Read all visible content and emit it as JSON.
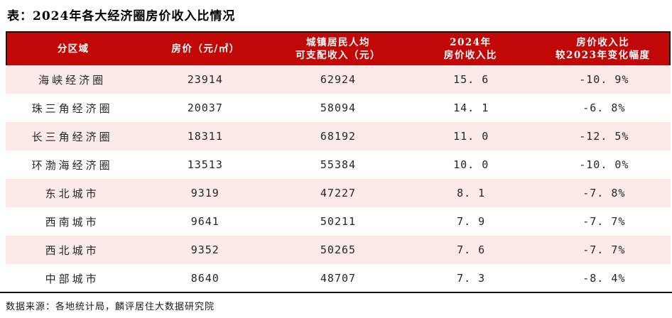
{
  "title": "表：2024年各大经济圈房价收入比情况",
  "colors": {
    "header_bg": "#C20707",
    "header_text": "#ffffff",
    "row_alt_bg": "#FCEAE8",
    "row_bg": "#ffffff",
    "text": "#262626",
    "rule": "#111111"
  },
  "table": {
    "header": {
      "columns": [
        {
          "line1": "分区域",
          "line2": ""
        },
        {
          "line1": "房价（元/㎡）",
          "line2": ""
        },
        {
          "line1": "城镇居民人均",
          "line2": "可支配收入（元）"
        },
        {
          "line1": "2024年",
          "line2": "房价收入比"
        },
        {
          "line1": "房价收入比",
          "line2": "较2023年变化幅度"
        }
      ]
    },
    "rows": [
      {
        "region": "海峡经济圈",
        "price": "23914",
        "income": "62924",
        "ratio": "15. 6",
        "change": "-10. 9%"
      },
      {
        "region": "珠三角经济圈",
        "price": "20037",
        "income": "58094",
        "ratio": "14. 1",
        "change": "-6. 8%"
      },
      {
        "region": "长三角经济圈",
        "price": "18311",
        "income": "68192",
        "ratio": "11. 0",
        "change": "-12. 5%"
      },
      {
        "region": "环渤海经济圈",
        "price": "13513",
        "income": "55384",
        "ratio": "10. 0",
        "change": "-10. 0%"
      },
      {
        "region": "东北城市",
        "price": "9319",
        "income": "47227",
        "ratio": "8. 1",
        "change": "-7. 8%"
      },
      {
        "region": "西南城市",
        "price": "9641",
        "income": "50211",
        "ratio": "7. 9",
        "change": "-7. 7%"
      },
      {
        "region": "西北城市",
        "price": "9352",
        "income": "50265",
        "ratio": "7. 6",
        "change": "-7. 7%"
      },
      {
        "region": "中部城市",
        "price": "8640",
        "income": "48707",
        "ratio": "7. 3",
        "change": "-8. 4%"
      }
    ]
  },
  "footer": {
    "source": "数据来源：各地统计局，麟评居住大数据研究院"
  },
  "chart_data": {
    "type": "table",
    "title": "表：2024年各大经济圈房价收入比情况",
    "columns": [
      "分区域",
      "房价（元/㎡）",
      "城镇居民人均可支配收入（元）",
      "2024年房价收入比",
      "房价收入比较2023年变化幅度"
    ],
    "rows": [
      [
        "海峡经济圈",
        23914,
        62924,
        15.6,
        "-10.9%"
      ],
      [
        "珠三角经济圈",
        20037,
        58094,
        14.1,
        "-6.8%"
      ],
      [
        "长三角经济圈",
        18311,
        68192,
        11.0,
        "-12.5%"
      ],
      [
        "环渤海经济圈",
        13513,
        55384,
        10.0,
        "-10.0%"
      ],
      [
        "东北城市",
        9319,
        47227,
        8.1,
        "-7.8%"
      ],
      [
        "西南城市",
        9641,
        50211,
        7.9,
        "-7.7%"
      ],
      [
        "西北城市",
        9352,
        50265,
        7.6,
        "-7.7%"
      ],
      [
        "中部城市",
        8640,
        48707,
        7.3,
        "-8.4%"
      ]
    ],
    "source": "数据来源：各地统计局，麟评居住大数据研究院"
  }
}
